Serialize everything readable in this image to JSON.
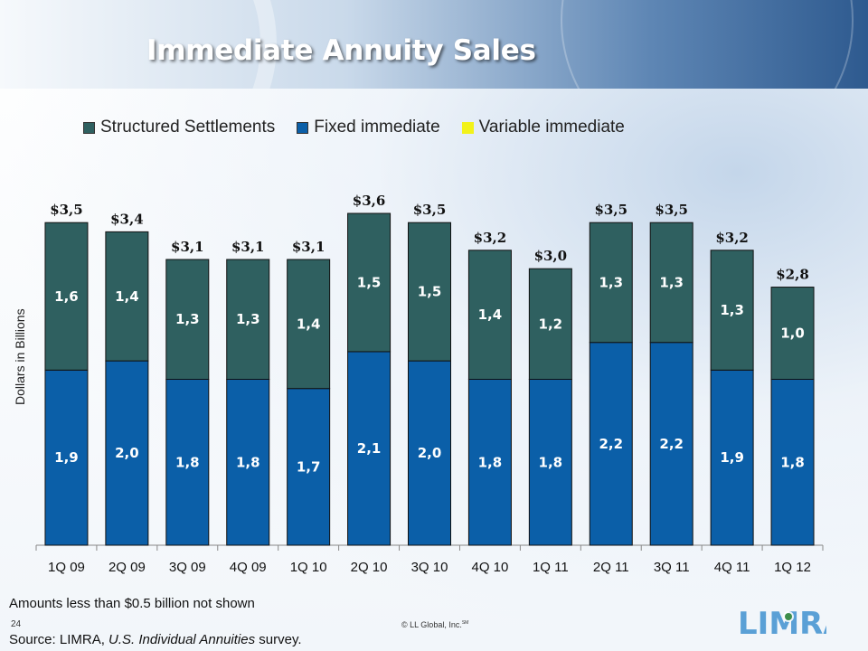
{
  "slide": {
    "title": "Immediate Annuity Sales",
    "note": "Amounts less than $0.5 billion not shown",
    "page_number": "24",
    "copyright": "© LL Global, Inc.",
    "copyright_mark": "SM",
    "source_prefix": "Source: LIMRA, ",
    "source_title": "U.S. Individual Annuities",
    "source_suffix": " survey.",
    "logo_text": "LIMRA"
  },
  "colors": {
    "structured": "#2f6060",
    "fixed": "#0b5fa8",
    "variable": "#f2f21a",
    "title": "#ffffff"
  },
  "chart_data": {
    "type": "bar",
    "stacked": true,
    "ylabel": "Dollars in Billions",
    "ylim": [
      0,
      3.6
    ],
    "grid": false,
    "legend_position": "top",
    "categories": [
      "1Q 09",
      "2Q 09",
      "3Q 09",
      "4Q 09",
      "1Q 10",
      "2Q 10",
      "3Q 10",
      "4Q 10",
      "1Q 11",
      "2Q 11",
      "3Q 11",
      "4Q 11",
      "1Q 12"
    ],
    "series": [
      {
        "name": "Structured Settlements",
        "values": [
          1.6,
          1.4,
          1.3,
          1.3,
          1.4,
          1.5,
          1.5,
          1.4,
          1.2,
          1.3,
          1.3,
          1.3,
          1.0
        ],
        "labels": [
          "1,6",
          "1,4",
          "1,3",
          "1,3",
          "1,4",
          "1,5",
          "1,5",
          "1,4",
          "1,2",
          "1,3",
          "1,3",
          "1,3",
          "1,0"
        ]
      },
      {
        "name": "Fixed immediate",
        "values": [
          1.9,
          2.0,
          1.8,
          1.8,
          1.7,
          2.1,
          2.0,
          1.8,
          1.8,
          2.2,
          2.2,
          1.9,
          1.8
        ],
        "labels": [
          "1,9",
          "2,0",
          "1,8",
          "1,8",
          "1,7",
          "2,1",
          "2,0",
          "1,8",
          "1,8",
          "2,2",
          "2,2",
          "1,9",
          "1,8"
        ]
      },
      {
        "name": "Variable immediate",
        "values": [
          0.02,
          0.02,
          0.02,
          0.02,
          0.02,
          0.02,
          0.02,
          0.02,
          0.02,
          0.02,
          0.02,
          0.02,
          0.02
        ]
      }
    ],
    "totals": [
      3.5,
      3.4,
      3.1,
      3.1,
      3.1,
      3.6,
      3.5,
      3.2,
      3.0,
      3.5,
      3.5,
      3.2,
      2.8
    ],
    "total_labels": [
      "$3,5",
      "$3,4",
      "$3,1",
      "$3,1",
      "$3,1",
      "$3,6",
      "$3,5",
      "$3,2",
      "$3,0",
      "$3,5",
      "$3,5",
      "$3,2",
      "$2,8"
    ]
  }
}
